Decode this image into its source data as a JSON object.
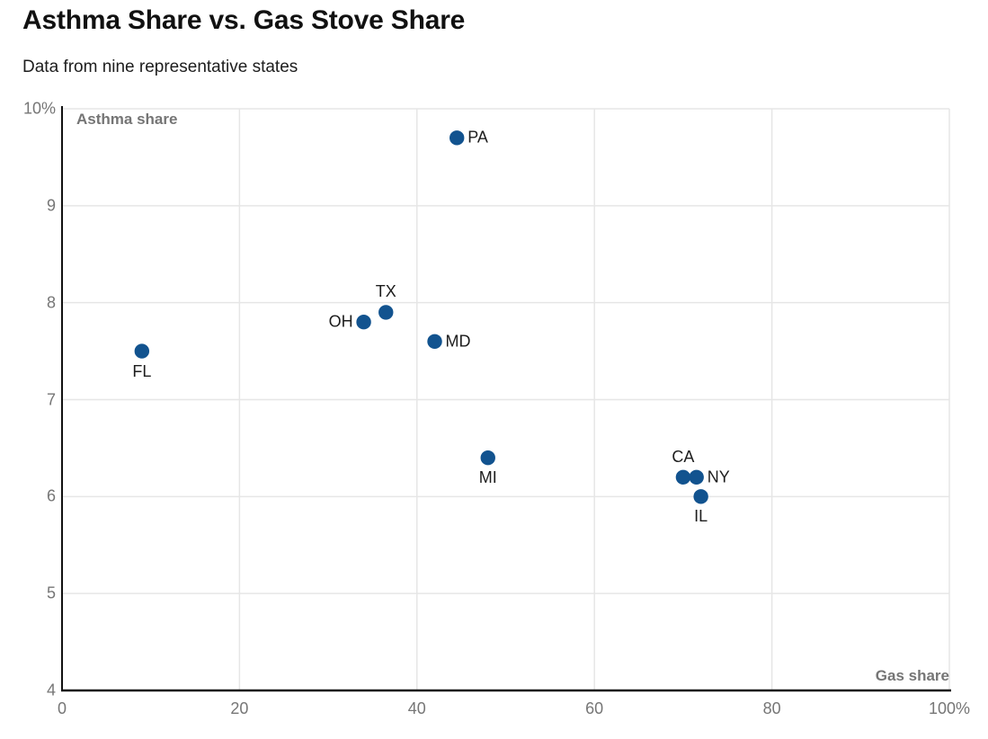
{
  "header": {
    "title": "Asthma Share vs. Gas Stove Share",
    "subtitle": "Data from nine representative states"
  },
  "chart_data": {
    "type": "scatter",
    "title": "Asthma Share vs. Gas Stove Share",
    "subtitle": "Data from nine representative states",
    "xlabel": "Gas share",
    "ylabel": "Asthma share",
    "xlim": [
      0,
      100
    ],
    "ylim": [
      4,
      10
    ],
    "grid": true,
    "legend": "none",
    "x_ticks": [
      {
        "value": 0,
        "label": "0"
      },
      {
        "value": 20,
        "label": "20"
      },
      {
        "value": 40,
        "label": "40"
      },
      {
        "value": 60,
        "label": "60"
      },
      {
        "value": 80,
        "label": "80"
      },
      {
        "value": 100,
        "label": "100%"
      }
    ],
    "y_ticks": [
      {
        "value": 4,
        "label": "4"
      },
      {
        "value": 5,
        "label": "5"
      },
      {
        "value": 6,
        "label": "6"
      },
      {
        "value": 7,
        "label": "7"
      },
      {
        "value": 8,
        "label": "8"
      },
      {
        "value": 9,
        "label": "9"
      },
      {
        "value": 10,
        "label": "10%"
      }
    ],
    "points": [
      {
        "state": "FL",
        "x": 9,
        "y": 7.5,
        "label_position": "below"
      },
      {
        "state": "OH",
        "x": 34,
        "y": 7.8,
        "label_position": "left"
      },
      {
        "state": "TX",
        "x": 36.5,
        "y": 7.9,
        "label_position": "above"
      },
      {
        "state": "MD",
        "x": 42,
        "y": 7.6,
        "label_position": "right"
      },
      {
        "state": "PA",
        "x": 44.5,
        "y": 9.7,
        "label_position": "right"
      },
      {
        "state": "MI",
        "x": 48,
        "y": 6.4,
        "label_position": "below"
      },
      {
        "state": "CA",
        "x": 70,
        "y": 6.2,
        "label_position": "above"
      },
      {
        "state": "NY",
        "x": 71.5,
        "y": 6.2,
        "label_position": "right"
      },
      {
        "state": "IL",
        "x": 72,
        "y": 6.0,
        "label_position": "below"
      }
    ],
    "colors": {
      "dot": "#12538f",
      "grid": "#e6e6e6",
      "axis": "#111111",
      "tick_text": "#767676",
      "axis_title": "#757575",
      "point_label": "#1d1d1d"
    }
  }
}
